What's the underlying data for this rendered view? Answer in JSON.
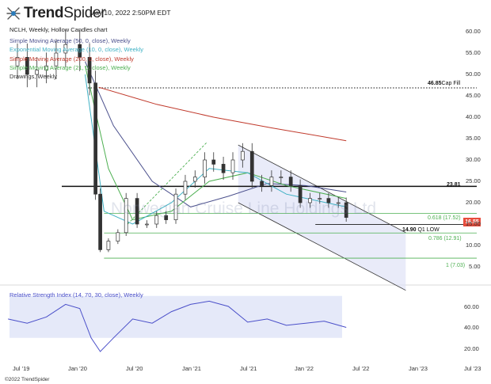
{
  "header": {
    "brand_bold": "Trend",
    "brand_light": "Spider",
    "timestamp": "May 10, 2022 2:50PM EDT",
    "chart_title": "NCLH, Weekly, Hollow Candles chart",
    "legend": [
      {
        "label": "Simple Moving Average (50, 0, close), Weekly",
        "color": "#4a4f8c"
      },
      {
        "label": "Exponential Moving Average (10, 0, close), Weekly",
        "color": "#3fb1c4"
      },
      {
        "label": "Simple Moving Average (200, 0, close), Weekly",
        "color": "#c0392b"
      },
      {
        "label": "Simple Moving Average (21, 0, close), Weekly",
        "color": "#4caf50"
      },
      {
        "label": "Drawings, Weekly",
        "color": "#333333"
      }
    ],
    "watermark": "Norwegian Cruise Line Holdings Ltd",
    "rsi_label": "Relative Strength Index (14, 70, 30, close), Weekly",
    "copyright": "©2022 TrendSpider"
  },
  "annotations": {
    "cap_fill_value": "46.85",
    "cap_fill_text": "Cap Fill",
    "level_2381": "23.81",
    "fib_618": "0.618 (17.52)",
    "q1_low_value": "14.90",
    "q1_low_text": "Q1 LOW",
    "fib_786": "0.786 (12.91)",
    "fib_1": "1 (7.03)",
    "current_price": "16.55"
  },
  "colors": {
    "sma50": "#4a4f8c",
    "ema10": "#3fb1c4",
    "sma200": "#c0392b",
    "sma21": "#4caf50",
    "channel_fill": "#dfe3f7",
    "rsi_band": "#dfe3f7",
    "rsi_line": "#4a4fc9",
    "price_tag": "#e74c3c",
    "candle": "#333333"
  },
  "chart_data": [
    {
      "type": "candlestick",
      "title": "NCLH, Weekly, Hollow Candles chart",
      "x_tick_labels": [
        "Jul '19",
        "Jan '20",
        "Jul '20",
        "Jan '21",
        "Jul '21",
        "Jan '22",
        "Jul '22",
        "Jan '23",
        "Jul '23"
      ],
      "y_tick_labels": [
        "60.00",
        "55.00",
        "50.00",
        "45.00",
        "40.00",
        "35.00",
        "30.00",
        "25.00",
        "20.00",
        "15.00",
        "10.00",
        "5.00"
      ],
      "ylim": [
        2,
        62
      ],
      "last_close": 16.55,
      "price_series": [
        [
          "2019-06-01",
          52
        ],
        [
          "2019-07-01",
          54
        ],
        [
          "2019-08-01",
          50
        ],
        [
          "2019-09-01",
          51
        ],
        [
          "2019-10-01",
          52
        ],
        [
          "2019-11-01",
          55
        ],
        [
          "2019-12-01",
          57
        ],
        [
          "2020-01-15",
          54
        ],
        [
          "2020-02-15",
          48
        ],
        [
          "2020-03-05",
          22
        ],
        [
          "2020-03-20",
          9
        ],
        [
          "2020-04-15",
          11
        ],
        [
          "2020-05-15",
          13
        ],
        [
          "2020-06-10",
          21
        ],
        [
          "2020-07-15",
          15
        ],
        [
          "2020-08-15",
          15
        ],
        [
          "2020-09-15",
          17
        ],
        [
          "2020-10-15",
          16
        ],
        [
          "2020-11-15",
          22
        ],
        [
          "2020-12-15",
          25
        ],
        [
          "2021-01-15",
          26
        ],
        [
          "2021-02-15",
          30
        ],
        [
          "2021-03-15",
          29
        ],
        [
          "2021-04-15",
          27
        ],
        [
          "2021-05-15",
          30
        ],
        [
          "2021-06-15",
          32
        ],
        [
          "2021-07-15",
          25
        ],
        [
          "2021-08-15",
          24
        ],
        [
          "2021-09-15",
          26
        ],
        [
          "2021-10-15",
          26
        ],
        [
          "2021-11-15",
          24
        ],
        [
          "2021-12-15",
          20
        ],
        [
          "2022-01-15",
          21
        ],
        [
          "2022-02-15",
          21
        ],
        [
          "2022-03-15",
          20
        ],
        [
          "2022-04-15",
          20
        ],
        [
          "2022-05-10",
          16.55
        ]
      ],
      "moving_averages": {
        "sma200": [
          [
            "2020-03-15",
            47
          ],
          [
            "2020-09-15",
            43
          ],
          [
            "2021-03-15",
            40
          ],
          [
            "2021-09-15",
            37.5
          ],
          [
            "2022-05-10",
            34.5
          ]
        ],
        "sma50": [
          [
            "2020-02-01",
            53
          ],
          [
            "2020-05-01",
            38
          ],
          [
            "2020-09-01",
            25
          ],
          [
            "2021-01-01",
            19
          ],
          [
            "2021-05-01",
            21.5
          ],
          [
            "2021-09-01",
            24.5
          ],
          [
            "2022-01-01",
            24
          ],
          [
            "2022-05-10",
            22.5
          ]
        ],
        "sma21": [
          [
            "2020-02-01",
            52
          ],
          [
            "2020-04-15",
            28
          ],
          [
            "2020-07-01",
            16
          ],
          [
            "2020-11-01",
            18
          ],
          [
            "2021-03-01",
            25
          ],
          [
            "2021-07-01",
            27
          ],
          [
            "2021-11-01",
            24
          ],
          [
            "2022-05-10",
            21
          ]
        ],
        "ema10": [
          [
            "2020-02-01",
            50
          ],
          [
            "2020-04-01",
            18
          ],
          [
            "2020-07-01",
            15
          ],
          [
            "2020-11-01",
            20
          ],
          [
            "2021-03-01",
            28
          ],
          [
            "2021-07-01",
            27
          ],
          [
            "2021-11-01",
            22
          ],
          [
            "2022-05-10",
            19
          ]
        ]
      },
      "levels": [
        {
          "name": "cap_fill",
          "value": 46.85
        },
        {
          "name": "level_2381",
          "value": 23.81
        },
        {
          "name": "fib_618",
          "value": 17.52
        },
        {
          "name": "q1_low",
          "value": 14.9
        },
        {
          "name": "fib_786",
          "value": 12.91
        },
        {
          "name": "fib_1",
          "value": 7.03
        }
      ]
    },
    {
      "type": "line",
      "title": "Relative Strength Index (14, 70, 30, close), Weekly",
      "y_tick_labels": [
        "60.00",
        "40.00",
        "20.00"
      ],
      "ylim": [
        12,
        78
      ],
      "band": [
        30,
        70
      ],
      "values": [
        [
          "2019-06-01",
          48
        ],
        [
          "2019-08-01",
          44
        ],
        [
          "2019-10-01",
          50
        ],
        [
          "2019-12-01",
          62
        ],
        [
          "2020-01-15",
          58
        ],
        [
          "2020-02-20",
          30
        ],
        [
          "2020-03-20",
          17
        ],
        [
          "2020-05-01",
          30
        ],
        [
          "2020-07-01",
          48
        ],
        [
          "2020-09-01",
          44
        ],
        [
          "2020-11-01",
          55
        ],
        [
          "2021-01-01",
          62
        ],
        [
          "2021-03-01",
          65
        ],
        [
          "2021-05-01",
          60
        ],
        [
          "2021-07-01",
          45
        ],
        [
          "2021-09-01",
          48
        ],
        [
          "2021-11-01",
          42
        ],
        [
          "2022-01-01",
          44
        ],
        [
          "2022-03-01",
          46
        ],
        [
          "2022-05-10",
          40
        ]
      ]
    }
  ]
}
